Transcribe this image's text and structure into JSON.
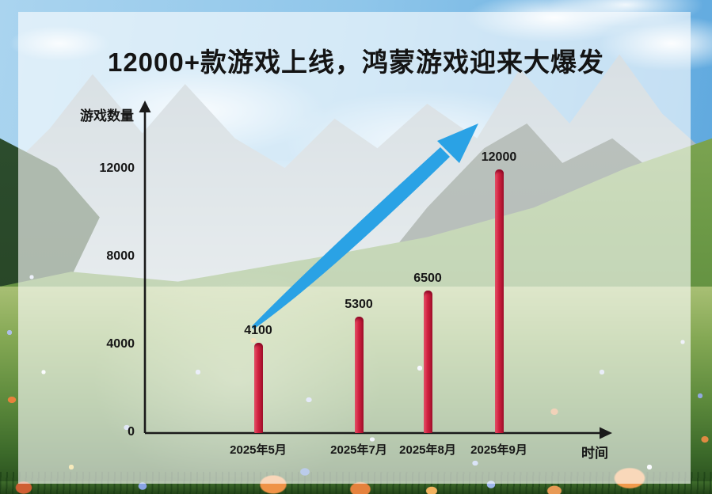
{
  "title": "12000+款游戏上线，鸿蒙游戏迎来大爆发",
  "colors": {
    "bar": "#ce1f3c",
    "arrow": "#2aa2e5",
    "axis": "#1a1a1a",
    "text": "#141414",
    "panel": "rgba(255,255,255,0.62)"
  },
  "chart_data": {
    "type": "bar",
    "title": "12000+款游戏上线，鸿蒙游戏迎来大爆发",
    "ylabel": "游戏数量",
    "xlabel": "时间",
    "categories": [
      "2025年5月",
      "2025年7月",
      "2025年8月",
      "2025年9月"
    ],
    "values": [
      4100,
      5300,
      6500,
      12000
    ],
    "yticks": [
      0,
      4000,
      8000,
      12000
    ],
    "ylim": [
      0,
      14800
    ],
    "grid": false,
    "legend": false,
    "annotations": "upward curved trend arrow from first bar toward 12000 label"
  }
}
